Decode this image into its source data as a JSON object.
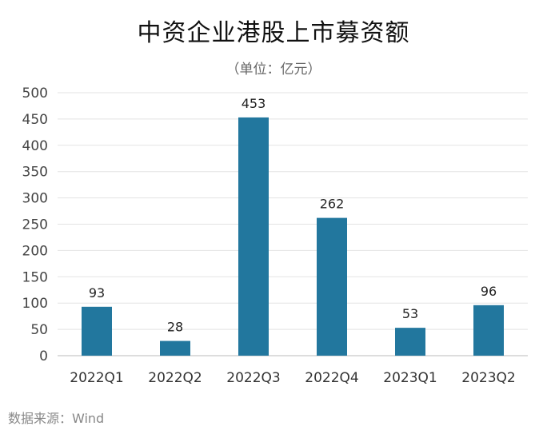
{
  "chart_data": {
    "type": "bar",
    "title": "中资企业港股上市募资额",
    "subtitle": "（单位：亿元）",
    "categories": [
      "2022Q1",
      "2022Q2",
      "2022Q3",
      "2022Q4",
      "2023Q1",
      "2023Q2"
    ],
    "values": [
      93,
      28,
      453,
      262,
      53,
      96
    ],
    "ylim": [
      0,
      500
    ],
    "yticks": [
      0,
      50,
      100,
      150,
      200,
      250,
      300,
      350,
      400,
      450,
      500
    ],
    "grid": true,
    "legend": "none",
    "bar_color": "#22779E"
  },
  "source": "数据来源：Wind"
}
